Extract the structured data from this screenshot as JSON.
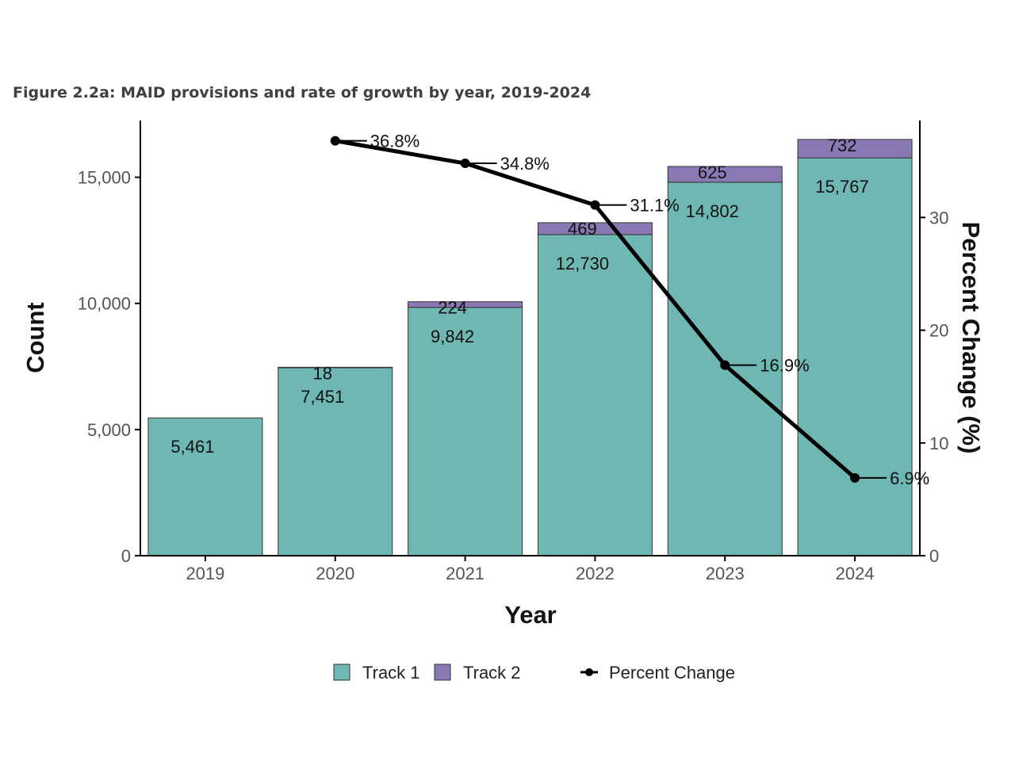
{
  "title": "Figure 2.2a: MAID provisions and rate of growth by year, 2019-2024",
  "chart_data": {
    "type": "bar",
    "stacked": true,
    "categories": [
      "2019",
      "2020",
      "2021",
      "2022",
      "2023",
      "2024"
    ],
    "series": [
      {
        "name": "Track 1",
        "color": "#6fb7b2",
        "values": [
          5461,
          7451,
          9842,
          12730,
          14802,
          15767
        ]
      },
      {
        "name": "Track 2",
        "color": "#8a78b4",
        "values": [
          0,
          18,
          224,
          469,
          625,
          732
        ]
      }
    ],
    "track1_labels": [
      "5,461",
      "7,451",
      "9,842",
      "12,730",
      "14,802",
      "15,767"
    ],
    "track2_labels": [
      "",
      "18",
      "224",
      "469",
      "625",
      "732"
    ],
    "line_series": {
      "name": "Percent Change",
      "color": "#000000",
      "categories": [
        "2020",
        "2021",
        "2022",
        "2023",
        "2024"
      ],
      "values": [
        36.8,
        34.8,
        31.1,
        16.9,
        6.9
      ],
      "labels": [
        "36.8%",
        "34.8%",
        "31.1%",
        "16.9%",
        "6.9%"
      ]
    },
    "xlabel": "Year",
    "ylabel": "Count",
    "y2label": "Percent Change (%)",
    "ylim": [
      0,
      17250
    ],
    "y2lim": [
      0,
      38.6
    ],
    "yticks": [
      0,
      5000,
      10000,
      15000
    ],
    "ytick_labels": [
      "0",
      "5,000",
      "10,000",
      "15,000"
    ],
    "y2ticks": [
      0,
      10,
      20,
      30
    ],
    "y2tick_labels": [
      "0",
      "10",
      "20",
      "30"
    ],
    "legend": {
      "position": "bottom",
      "items": [
        "Track 1",
        "Track 2",
        "Percent Change"
      ]
    }
  }
}
